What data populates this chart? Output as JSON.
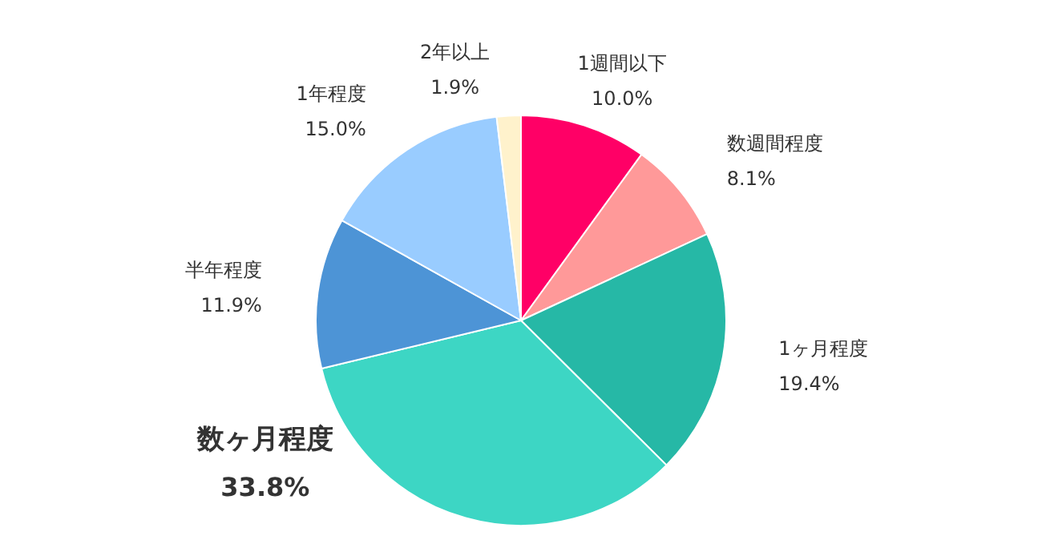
{
  "chart_data": {
    "type": "pie",
    "categories": [
      "1週間以下",
      "数週間程度",
      "1ヶ月程度",
      "数ヶ月程度",
      "半年程度",
      "1年程度",
      "2年以上"
    ],
    "values": [
      10.0,
      8.1,
      19.4,
      33.8,
      11.9,
      15.0,
      1.9
    ],
    "value_labels": [
      "10.0%",
      "8.1%",
      "19.4%",
      "33.8%",
      "11.9%",
      "15.0%",
      "1.9%"
    ],
    "colors": [
      "#ff0066",
      "#ff9999",
      "#26b8a6",
      "#3dd6c4",
      "#4d94d6",
      "#99ccff",
      "#fff2cc"
    ],
    "legend": false
  }
}
